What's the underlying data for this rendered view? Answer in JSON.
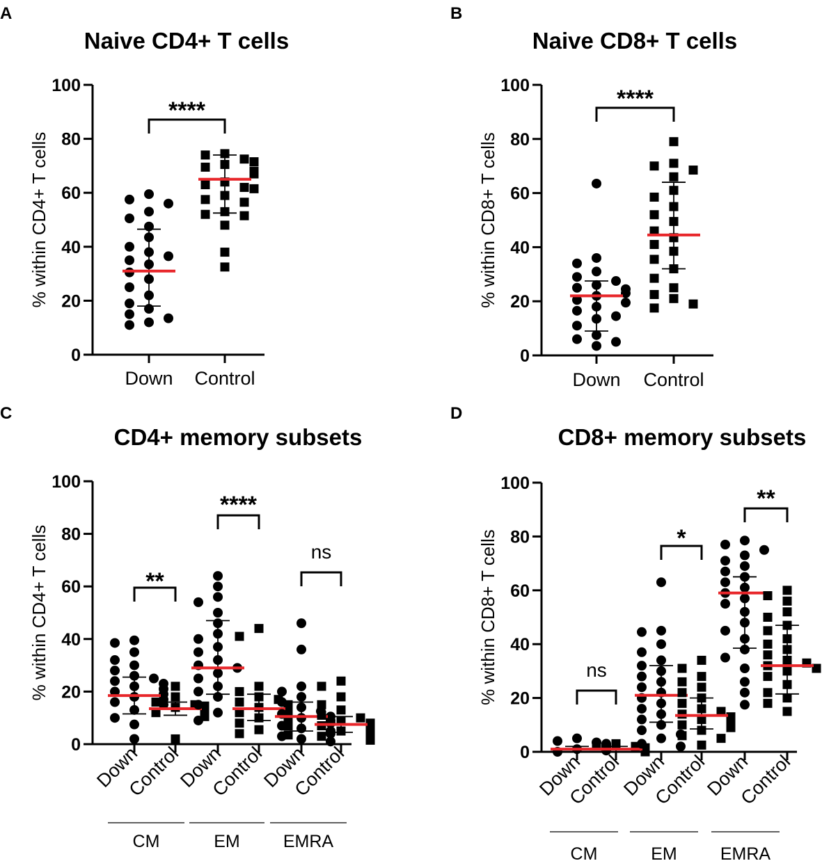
{
  "chart_data": [
    {
      "panel": "A",
      "type": "scatter",
      "title": "Naive CD4+ T cells",
      "ylabel": "% within CD4+ T cells",
      "ylim": [
        0,
        100
      ],
      "yticks": [
        "0",
        "20",
        "40",
        "60",
        "80",
        "100"
      ],
      "groups": [
        {
          "label": "Down",
          "marker": "circle",
          "mean": 31,
          "sd_low": 18,
          "sd_high": 46.5,
          "values": [
            59.5,
            57.5,
            56,
            53,
            50.5,
            47.5,
            43.5,
            40,
            38,
            36.5,
            35,
            33.5,
            30.5,
            28,
            25,
            22,
            19,
            17,
            15,
            13.5,
            12,
            11
          ]
        },
        {
          "label": "Control",
          "marker": "square",
          "mean": 65,
          "sd_low": 52.5,
          "sd_high": 74,
          "values": [
            74.5,
            74,
            72.5,
            71.5,
            70.5,
            69.5,
            68,
            67.5,
            67,
            64,
            63,
            62,
            61.5,
            59,
            57.5,
            56.5,
            53,
            52,
            51.5,
            48,
            38,
            32.5
          ]
        }
      ],
      "comparisons": [
        {
          "groups": [
            "Down",
            "Control"
          ],
          "label": "****"
        }
      ]
    },
    {
      "panel": "B",
      "type": "scatter",
      "title": "Naive CD8+ T cells",
      "ylabel": "% within CD8+ T cells",
      "ylim": [
        0,
        100
      ],
      "yticks": [
        "0",
        "20",
        "40",
        "60",
        "80",
        "100"
      ],
      "groups": [
        {
          "label": "Down",
          "marker": "circle",
          "mean": 22,
          "sd_low": 9,
          "sd_high": 27.5,
          "values": [
            63.5,
            36,
            34,
            31,
            29,
            27.5,
            26,
            25,
            24.5,
            23,
            22,
            20.5,
            19.5,
            18,
            16.5,
            14.5,
            13.5,
            11,
            7.5,
            6,
            5,
            3.5
          ]
        },
        {
          "label": "Control",
          "marker": "square",
          "mean": 44.5,
          "sd_low": 32,
          "sd_high": 64,
          "values": [
            79,
            71,
            70,
            68.5,
            66,
            61,
            58.5,
            55,
            52,
            49.5,
            46,
            43.5,
            41,
            38.5,
            35.5,
            32,
            28.5,
            25,
            22.5,
            21,
            19,
            17.5
          ]
        }
      ],
      "comparisons": [
        {
          "groups": [
            "Down",
            "Control"
          ],
          "label": "****"
        }
      ]
    },
    {
      "panel": "C",
      "type": "scatter",
      "title": "CD4+ memory subsets",
      "ylabel": "% within CD4+ T cells",
      "ylim": [
        0,
        100
      ],
      "yticks": [
        "0",
        "20",
        "40",
        "60",
        "80",
        "100"
      ],
      "subset_labels": [
        "CM",
        "EM",
        "EMRA"
      ],
      "groups": [
        {
          "label": "Down",
          "subset": "CM",
          "marker": "circle",
          "mean": 18.5,
          "sd_low": 11.5,
          "sd_high": 25.5,
          "values": [
            39.5,
            38.5,
            35,
            32,
            30,
            28,
            26,
            25,
            24,
            23,
            22,
            21,
            20,
            19,
            18,
            17,
            16,
            15,
            13,
            10,
            7.5,
            2
          ]
        },
        {
          "label": "Control",
          "subset": "CM",
          "marker": "square",
          "mean": 13.5,
          "sd_low": 11,
          "sd_high": 16,
          "values": [
            22,
            18,
            16,
            15,
            14.5,
            14,
            13.5,
            13,
            12.5,
            12,
            11.5,
            11,
            10.5,
            2
          ]
        },
        {
          "label": "Down",
          "subset": "EM",
          "marker": "circle",
          "mean": 29,
          "sd_low": 19,
          "sd_high": 47,
          "values": [
            64,
            60,
            56,
            54,
            50,
            46,
            42,
            40,
            37,
            35,
            32,
            30,
            29,
            27,
            25,
            22,
            20,
            18,
            15,
            12,
            9
          ]
        },
        {
          "label": "Control",
          "subset": "EM",
          "marker": "square",
          "mean": 13.5,
          "sd_low": 9,
          "sd_high": 19,
          "values": [
            44,
            41,
            22,
            20,
            18,
            17,
            16,
            15,
            14,
            13.5,
            13,
            12,
            11,
            10,
            9,
            8,
            7,
            5.5,
            4,
            3.5
          ]
        },
        {
          "label": "Down",
          "subset": "EMRA",
          "marker": "circle",
          "mean": 10.5,
          "sd_low": 5,
          "sd_high": 16,
          "values": [
            46,
            36,
            22,
            20,
            18,
            16,
            14,
            12.5,
            11.5,
            10.5,
            10,
            9,
            8,
            7,
            6,
            5,
            4,
            3,
            2,
            1
          ]
        },
        {
          "label": "Control",
          "subset": "EMRA",
          "marker": "square",
          "mean": 7.5,
          "sd_low": 4.5,
          "sd_high": 10.5,
          "values": [
            24,
            22,
            18,
            15,
            13,
            11,
            10,
            9,
            8,
            7.5,
            7,
            6,
            5,
            4,
            3,
            2,
            1.5
          ]
        }
      ],
      "comparisons": [
        {
          "subset": "CM",
          "label": "**"
        },
        {
          "subset": "EM",
          "label": "****"
        },
        {
          "subset": "EMRA",
          "label": "ns"
        }
      ]
    },
    {
      "panel": "D",
      "type": "scatter",
      "title": "CD8+ memory subsets",
      "ylabel": "% within CD8+ T cells",
      "ylim": [
        0,
        100
      ],
      "yticks": [
        "0",
        "20",
        "40",
        "60",
        "80",
        "100"
      ],
      "subset_labels": [
        "CM",
        "EM",
        "EMRA"
      ],
      "groups": [
        {
          "label": "Down",
          "subset": "CM",
          "marker": "circle",
          "mean": 1,
          "sd_low": 0,
          "sd_high": 2,
          "values": [
            5,
            4,
            3.5,
            3,
            2.5,
            2,
            1.5,
            1,
            1,
            0.5,
            0.5,
            0
          ]
        },
        {
          "label": "Control",
          "subset": "CM",
          "marker": "square",
          "mean": 1,
          "sd_low": 0,
          "sd_high": 2,
          "values": [
            3,
            2.5,
            2,
            1.5,
            1,
            1,
            0.5,
            0.5,
            0
          ]
        },
        {
          "label": "Down",
          "subset": "EM",
          "marker": "circle",
          "mean": 21,
          "sd_low": 11,
          "sd_high": 32,
          "values": [
            63,
            45,
            44.5,
            40,
            37,
            34,
            32,
            30,
            28,
            26,
            24,
            22,
            20,
            18,
            16,
            14,
            12,
            10,
            8,
            6.5,
            5,
            3,
            2
          ]
        },
        {
          "label": "Control",
          "subset": "EM",
          "marker": "square",
          "mean": 13.5,
          "sd_low": 8.5,
          "sd_high": 20,
          "values": [
            34,
            31,
            28,
            26,
            24,
            22,
            20,
            18,
            16,
            15,
            14,
            13,
            12,
            11,
            10,
            9,
            8,
            6,
            5,
            2.5
          ]
        },
        {
          "label": "Down",
          "subset": "EMRA",
          "marker": "circle",
          "mean": 59,
          "sd_low": 38.5,
          "sd_high": 65,
          "values": [
            78.5,
            77,
            75,
            73,
            71,
            69,
            67,
            65,
            63,
            61,
            59,
            57,
            55,
            52,
            48,
            45,
            42,
            38,
            35,
            31,
            26,
            22,
            17.5
          ]
        },
        {
          "label": "Control",
          "subset": "EMRA",
          "marker": "square",
          "mean": 32,
          "sd_low": 21.5,
          "sd_high": 47,
          "values": [
            60,
            58,
            56,
            52,
            50,
            47,
            45,
            42,
            40,
            38,
            36,
            34,
            33,
            32,
            31,
            30,
            28,
            25,
            22,
            20,
            18,
            15
          ]
        }
      ],
      "comparisons": [
        {
          "subset": "CM",
          "label": "ns"
        },
        {
          "subset": "EM",
          "label": "*"
        },
        {
          "subset": "EMRA",
          "label": "**"
        }
      ]
    }
  ]
}
